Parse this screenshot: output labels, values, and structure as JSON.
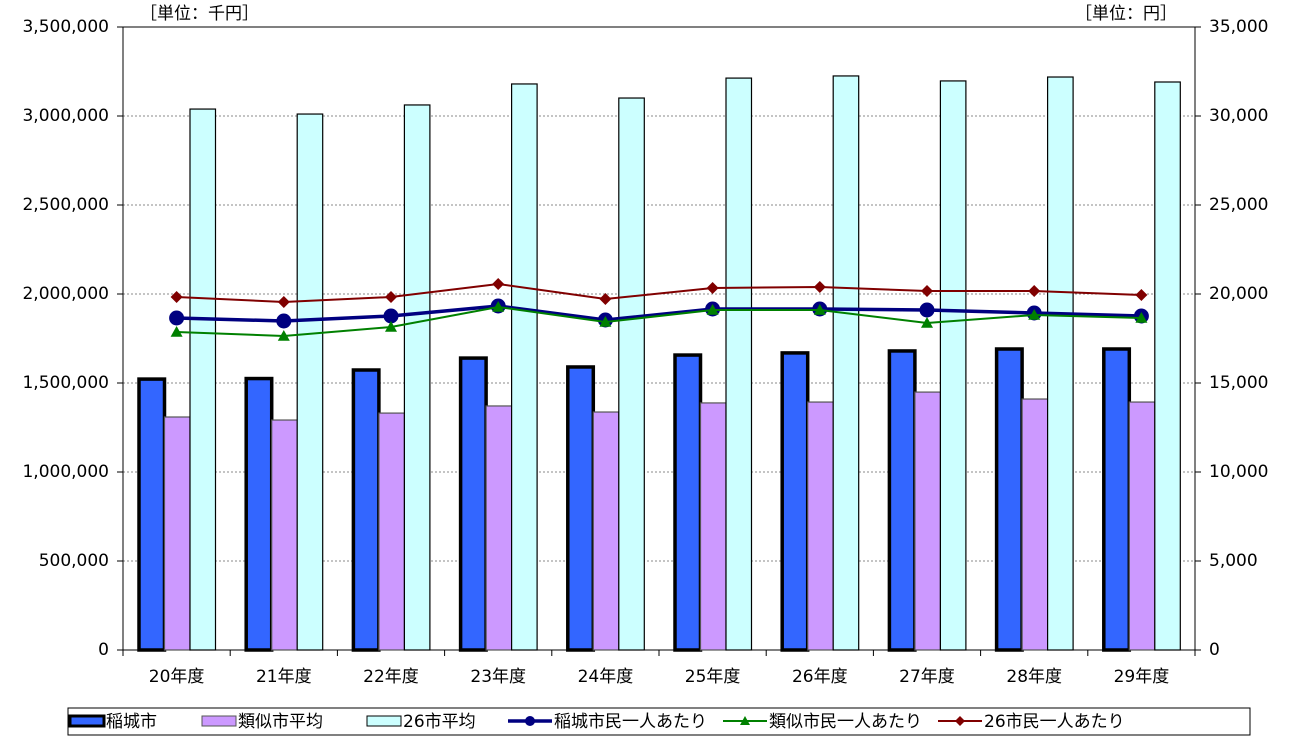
{
  "chart_data": {
    "type": "bar",
    "y_unit_label": "［単位：千円］",
    "y2_unit_label": "［単位：円］",
    "categories": [
      "20年度",
      "21年度",
      "22年度",
      "23年度",
      "24年度",
      "25年度",
      "26年度",
      "27年度",
      "28年度",
      "29年度"
    ],
    "series": [
      {
        "name": "稲城市",
        "type": "bar",
        "color": "#3366ff",
        "border": "#000000",
        "values": [
          1522000,
          1525000,
          1573000,
          1640000,
          1590000,
          1657000,
          1669000,
          1680000,
          1691000,
          1691000
        ]
      },
      {
        "name": "類似市平均",
        "type": "bar",
        "color": "#cc99ff",
        "border": "#555555",
        "values": [
          1309000,
          1292000,
          1331000,
          1371000,
          1337000,
          1388000,
          1393000,
          1449000,
          1410000,
          1393000
        ]
      },
      {
        "name": "26市平均",
        "type": "bar",
        "color": "#ccffff",
        "border": "#000000",
        "values": [
          3039000,
          3011000,
          3062000,
          3180000,
          3101000,
          3213000,
          3225000,
          3197000,
          3219000,
          3191000
        ]
      },
      {
        "name": "稲城市民一人あたり",
        "type": "line",
        "axis": "y2",
        "marker": "circle",
        "color": "#000080",
        "values": [
          18652,
          18483,
          18764,
          19326,
          18539,
          19157,
          19157,
          19101,
          18933,
          18764
        ]
      },
      {
        "name": "類似市民一人あたり",
        "type": "line",
        "axis": "y2",
        "marker": "triangle",
        "color": "#008000",
        "values": [
          17865,
          17640,
          18146,
          19270,
          18427,
          19101,
          19101,
          18371,
          18820,
          18652
        ]
      },
      {
        "name": "26市民一人あたり",
        "type": "line",
        "axis": "y2",
        "marker": "diamond",
        "color": "#800000",
        "values": [
          19831,
          19551,
          19831,
          20562,
          19719,
          20337,
          20393,
          20169,
          20169,
          19944
        ]
      }
    ],
    "ylim": [
      0,
      3500000
    ],
    "yticks": [
      0,
      {
        "value": 500000,
        "label": "500,000"
      },
      {
        "value": 1000000,
        "label": "1,000,000"
      },
      {
        "value": 1500000,
        "label": "1,500,000"
      },
      {
        "value": 2000000,
        "label": "2,000,000"
      },
      {
        "value": 2500000,
        "label": "2,500,000"
      },
      {
        "value": 3000000,
        "label": "3,000,000"
      },
      {
        "value": 3500000,
        "label": "3,500,000"
      }
    ],
    "y2lim": [
      0,
      35000
    ],
    "y2ticks": [
      0,
      {
        "value": 5000,
        "label": "5,000"
      },
      {
        "value": 10000,
        "label": "10,000"
      },
      {
        "value": 15000,
        "label": "15,000"
      },
      {
        "value": 20000,
        "label": "20,000"
      },
      {
        "value": 25000,
        "label": "25,000"
      },
      {
        "value": 30000,
        "label": "30,000"
      },
      {
        "value": 35000,
        "label": "35,000"
      }
    ],
    "grid": true,
    "legend": "bottom"
  }
}
